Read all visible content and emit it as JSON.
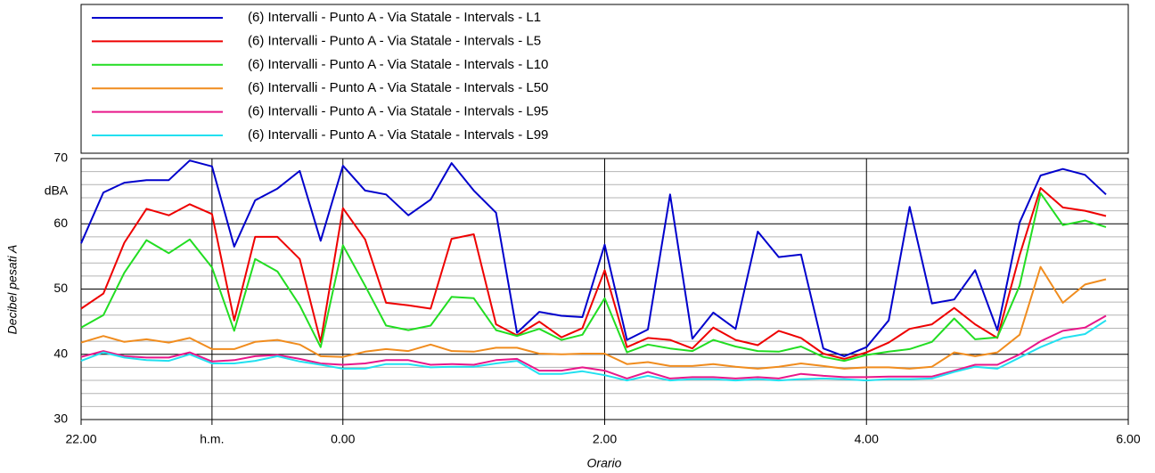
{
  "chart_data": {
    "type": "line",
    "x_label": "Orario",
    "y_label": "Decibel pesati A",
    "y_unit": "dBA",
    "x": [
      22,
      22.17,
      22.33,
      22.5,
      22.67,
      22.83,
      23,
      23.17,
      23.33,
      23.5,
      23.67,
      23.83,
      24,
      24.17,
      24.33,
      24.5,
      24.67,
      24.83,
      25,
      25.17,
      25.33,
      25.5,
      25.67,
      25.83,
      26,
      26.17,
      26.33,
      26.5,
      26.67,
      26.83,
      27,
      27.17,
      27.33,
      27.5,
      27.67,
      27.83,
      28,
      28.17,
      28.33,
      28.5,
      28.67,
      28.83,
      29,
      29.17,
      29.33,
      29.5,
      29.67,
      29.83
    ],
    "xlim": [
      22,
      30
    ],
    "xticks": [
      {
        "value": 22,
        "label": "22.00"
      },
      {
        "value": 23,
        "label": "h.m."
      },
      {
        "value": 24,
        "label": "0.00"
      },
      {
        "value": 26,
        "label": "2.00"
      },
      {
        "value": 28,
        "label": "4.00"
      },
      {
        "value": 30,
        "label": "6.00"
      }
    ],
    "ylim": [
      30,
      70
    ],
    "yticks": [
      30,
      40,
      50,
      60,
      70
    ],
    "yminorticks": [
      32,
      34,
      36,
      38,
      42,
      44,
      46,
      48,
      52,
      54,
      56,
      58,
      62,
      64,
      66,
      68
    ],
    "grid": true,
    "series": [
      {
        "name": "(6) Intervalli - Punto A - Via Statale - Intervals - L1",
        "color": "#0000cc",
        "values": [
          57.0,
          64.8,
          66.3,
          66.7,
          66.7,
          69.7,
          68.8,
          56.5,
          63.6,
          65.4,
          68.1,
          57.4,
          68.9,
          65.1,
          64.5,
          61.3,
          63.7,
          69.3,
          65.1,
          61.7,
          43.3,
          46.5,
          45.9,
          45.7,
          56.8,
          42.2,
          43.8,
          64.5,
          42.4,
          46.4,
          43.9,
          58.8,
          54.9,
          55.3,
          40.9,
          39.7,
          41.1,
          45.2,
          62.6,
          47.8,
          48.4,
          52.9,
          43.7,
          60.2,
          67.4,
          68.4,
          67.5,
          64.5
        ]
      },
      {
        "name": "(6) Intervalli - Punto A - Via Statale - Intervals - L5",
        "color": "#ee0000",
        "values": [
          47.0,
          49.3,
          57.1,
          62.3,
          61.3,
          63.0,
          61.5,
          45.2,
          58.0,
          58.0,
          54.6,
          41.9,
          62.4,
          57.6,
          47.9,
          47.5,
          47.0,
          57.7,
          58.4,
          44.6,
          42.9,
          45.0,
          42.6,
          44.0,
          52.9,
          41.1,
          42.5,
          42.2,
          40.9,
          44.1,
          42.2,
          41.4,
          43.6,
          42.5,
          40.1,
          39.3,
          40.3,
          41.8,
          43.9,
          44.6,
          47.1,
          44.6,
          42.5,
          55.2,
          65.5,
          62.5,
          62.0,
          61.2
        ]
      },
      {
        "name": "(6) Intervalli - Punto A - Via Statale - Intervals - L10",
        "color": "#22dd22",
        "values": [
          44.1,
          46.0,
          52.5,
          57.5,
          55.5,
          57.6,
          53.3,
          43.6,
          54.6,
          52.7,
          47.5,
          41.1,
          56.7,
          50.5,
          44.4,
          43.7,
          44.4,
          48.8,
          48.6,
          43.7,
          42.8,
          43.9,
          42.2,
          43.0,
          48.6,
          40.3,
          41.5,
          40.9,
          40.5,
          42.2,
          41.2,
          40.5,
          40.4,
          41.2,
          39.6,
          39.0,
          39.9,
          40.4,
          40.8,
          41.9,
          45.5,
          42.3,
          42.6,
          50.5,
          64.7,
          59.8,
          60.5,
          59.5
        ]
      },
      {
        "name": "(6) Intervalli - Punto A - Via Statale - Intervals - L50",
        "color": "#f08c1e",
        "values": [
          41.8,
          42.8,
          41.9,
          42.3,
          41.8,
          42.5,
          40.8,
          40.8,
          41.9,
          42.2,
          41.5,
          39.7,
          39.6,
          40.4,
          40.8,
          40.5,
          41.5,
          40.5,
          40.4,
          41.0,
          41.0,
          40.1,
          40.0,
          40.1,
          40.1,
          38.5,
          38.8,
          38.2,
          38.2,
          38.5,
          38.1,
          37.8,
          38.1,
          38.6,
          38.2,
          37.8,
          38.0,
          38.0,
          37.8,
          38.1,
          40.3,
          39.7,
          40.3,
          43.0,
          53.4,
          47.9,
          50.7,
          51.5
        ]
      },
      {
        "name": "(6) Intervalli - Punto A - Via Statale - Intervals - L95",
        "color": "#e8178a",
        "values": [
          39.6,
          40.5,
          39.7,
          39.5,
          39.5,
          40.3,
          38.9,
          39.1,
          39.7,
          39.9,
          39.3,
          38.6,
          38.4,
          38.6,
          39.1,
          39.1,
          38.4,
          38.5,
          38.4,
          39.1,
          39.3,
          37.5,
          37.5,
          38.0,
          37.5,
          36.3,
          37.3,
          36.3,
          36.5,
          36.5,
          36.3,
          36.5,
          36.3,
          37.0,
          36.7,
          36.5,
          36.5,
          36.6,
          36.6,
          36.6,
          37.5,
          38.4,
          38.4,
          40.0,
          42.0,
          43.6,
          44.1,
          45.9
        ]
      },
      {
        "name": "(6) Intervalli - Punto A - Via Statale - Intervals - L99",
        "color": "#22e0f0",
        "values": [
          39.0,
          40.3,
          39.5,
          39.1,
          39.0,
          40.0,
          38.6,
          38.6,
          39.0,
          39.7,
          38.9,
          38.4,
          37.8,
          37.8,
          38.5,
          38.5,
          38.0,
          38.1,
          38.1,
          38.6,
          39.0,
          37.0,
          37.0,
          37.4,
          36.8,
          36.0,
          36.7,
          36.0,
          36.2,
          36.2,
          36.0,
          36.2,
          36.0,
          36.2,
          36.3,
          36.2,
          36.0,
          36.2,
          36.2,
          36.3,
          37.3,
          38.1,
          37.8,
          39.5,
          41.1,
          42.5,
          43.1,
          45.2
        ]
      }
    ]
  }
}
